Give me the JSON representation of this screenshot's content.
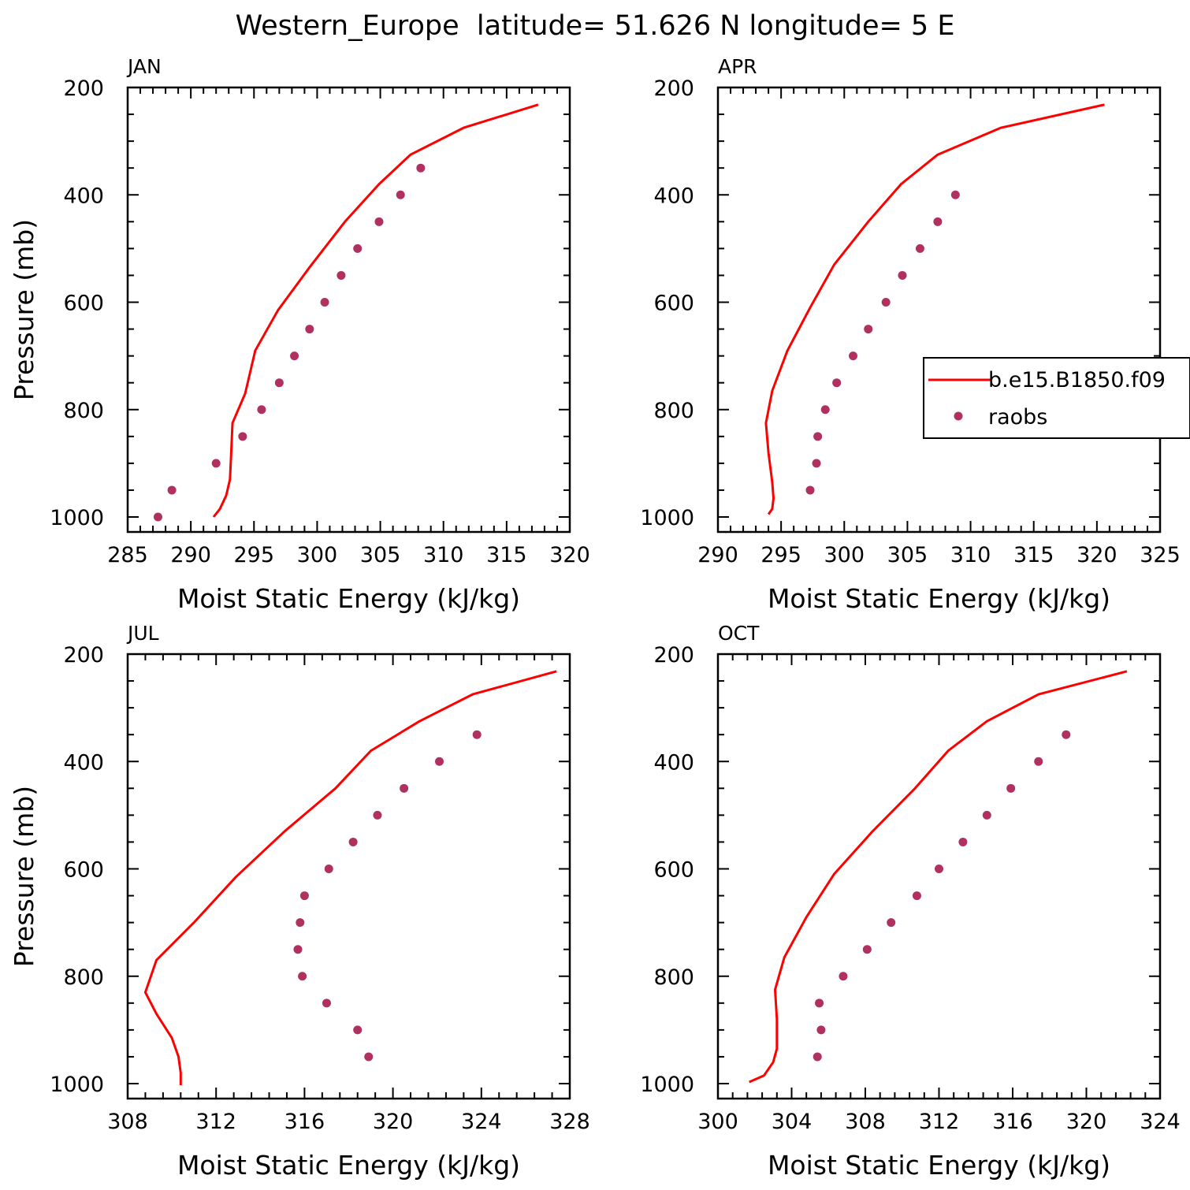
{
  "title": "Western_Europe  latitude= 51.626 N longitude= 5 E",
  "legend": {
    "entries": [
      {
        "label": "b.e15.B1850.f09",
        "type": "line",
        "color": "#ff0000"
      },
      {
        "label": "raobs",
        "type": "marker",
        "color": "#b03060"
      }
    ]
  },
  "chart_data": [
    {
      "type": "line",
      "panel_label": "JAN",
      "xlabel": "Moist Static Energy (kJ/kg)",
      "ylabel": "Pressure (mb)",
      "xlim": [
        285,
        320
      ],
      "ylim": [
        1000,
        200
      ],
      "y_reversed": true,
      "xticks": [
        "285",
        "290",
        "295",
        "300",
        "305",
        "310",
        "315",
        "320"
      ],
      "yticks": [
        "200",
        "400",
        "600",
        "800",
        "1000"
      ],
      "series": [
        {
          "name": "b.e15.B1850.f09",
          "style": "line",
          "color": "#ff0000",
          "points": [
            [
              317.5,
              232
            ],
            [
              311.6,
              275
            ],
            [
              307.4,
              325
            ],
            [
              304.9,
              380
            ],
            [
              302.2,
              450
            ],
            [
              299.4,
              535
            ],
            [
              296.9,
              615
            ],
            [
              295.1,
              690
            ],
            [
              294.3,
              770
            ],
            [
              293.3,
              825
            ],
            [
              293.2,
              880
            ],
            [
              293.1,
              930
            ],
            [
              292.8,
              960
            ],
            [
              292.3,
              985
            ],
            [
              291.8,
              1000
            ]
          ]
        },
        {
          "name": "raobs",
          "style": "scatter",
          "color": "#b03060",
          "points": [
            [
              308.2,
              350
            ],
            [
              306.6,
              400
            ],
            [
              304.9,
              450
            ],
            [
              303.2,
              500
            ],
            [
              301.9,
              550
            ],
            [
              300.6,
              600
            ],
            [
              299.4,
              650
            ],
            [
              298.2,
              700
            ],
            [
              297.0,
              750
            ],
            [
              295.6,
              800
            ],
            [
              294.1,
              850
            ],
            [
              292.0,
              900
            ],
            [
              288.5,
              950
            ],
            [
              287.4,
              1000
            ]
          ]
        }
      ]
    },
    {
      "type": "line",
      "panel_label": "APR",
      "xlabel": "Moist Static Energy (kJ/kg)",
      "ylabel": "",
      "xlim": [
        290,
        325
      ],
      "ylim": [
        1000,
        200
      ],
      "y_reversed": true,
      "xticks": [
        "290",
        "295",
        "300",
        "305",
        "310",
        "315",
        "320",
        "325"
      ],
      "yticks": [
        "200",
        "400",
        "600",
        "800",
        "1000"
      ],
      "series": [
        {
          "name": "b.e15.B1850.f09",
          "style": "line",
          "color": "#ff0000",
          "points": [
            [
              320.6,
              232
            ],
            [
              312.4,
              275
            ],
            [
              307.4,
              325
            ],
            [
              304.5,
              380
            ],
            [
              301.9,
              450
            ],
            [
              299.2,
              530
            ],
            [
              297.3,
              610
            ],
            [
              295.5,
              690
            ],
            [
              294.3,
              765
            ],
            [
              293.8,
              825
            ],
            [
              294.0,
              880
            ],
            [
              294.3,
              935
            ],
            [
              294.4,
              965
            ],
            [
              294.3,
              985
            ],
            [
              294.0,
              995
            ]
          ]
        },
        {
          "name": "raobs",
          "style": "scatter",
          "color": "#b03060",
          "points": [
            [
              308.8,
              400
            ],
            [
              307.4,
              450
            ],
            [
              306.0,
              500
            ],
            [
              304.6,
              550
            ],
            [
              303.3,
              600
            ],
            [
              301.9,
              650
            ],
            [
              300.7,
              700
            ],
            [
              299.4,
              750
            ],
            [
              298.5,
              800
            ],
            [
              297.9,
              850
            ],
            [
              297.8,
              900
            ],
            [
              297.3,
              950
            ]
          ]
        }
      ]
    },
    {
      "type": "line",
      "panel_label": "JUL",
      "xlabel": "Moist Static Energy (kJ/kg)",
      "ylabel": "Pressure (mb)",
      "xlim": [
        308,
        328
      ],
      "ylim": [
        1000,
        200
      ],
      "y_reversed": true,
      "xticks": [
        "308",
        "312",
        "316",
        "320",
        "324",
        "328"
      ],
      "yticks": [
        "200",
        "400",
        "600",
        "800",
        "1000"
      ],
      "series": [
        {
          "name": "b.e15.B1850.f09",
          "style": "line",
          "color": "#ff0000",
          "points": [
            [
              327.4,
              232
            ],
            [
              323.6,
              275
            ],
            [
              321.2,
              325
            ],
            [
              319.0,
              380
            ],
            [
              317.4,
              450
            ],
            [
              315.1,
              530
            ],
            [
              312.9,
              615
            ],
            [
              311.0,
              700
            ],
            [
              309.3,
              770
            ],
            [
              308.8,
              830
            ],
            [
              309.3,
              870
            ],
            [
              310.0,
              915
            ],
            [
              310.3,
              950
            ],
            [
              310.4,
              980
            ],
            [
              310.4,
              1003
            ]
          ]
        },
        {
          "name": "raobs",
          "style": "scatter",
          "color": "#b03060",
          "points": [
            [
              323.8,
              350
            ],
            [
              322.1,
              400
            ],
            [
              320.5,
              450
            ],
            [
              319.3,
              500
            ],
            [
              318.2,
              550
            ],
            [
              317.1,
              600
            ],
            [
              316.0,
              650
            ],
            [
              315.8,
              700
            ],
            [
              315.7,
              750
            ],
            [
              315.9,
              800
            ],
            [
              317.0,
              850
            ],
            [
              318.4,
              900
            ],
            [
              318.9,
              950
            ]
          ]
        }
      ]
    },
    {
      "type": "line",
      "panel_label": "OCT",
      "xlabel": "Moist Static Energy (kJ/kg)",
      "ylabel": "",
      "xlim": [
        300,
        324
      ],
      "ylim": [
        1000,
        200
      ],
      "y_reversed": true,
      "xticks": [
        "300",
        "304",
        "308",
        "312",
        "316",
        "320",
        "324"
      ],
      "yticks": [
        "200",
        "400",
        "600",
        "800",
        "1000"
      ],
      "series": [
        {
          "name": "b.e15.B1850.f09",
          "style": "line",
          "color": "#ff0000",
          "points": [
            [
              322.2,
              232
            ],
            [
              317.4,
              275
            ],
            [
              314.6,
              325
            ],
            [
              312.5,
              380
            ],
            [
              310.7,
              450
            ],
            [
              308.4,
              530
            ],
            [
              306.3,
              610
            ],
            [
              304.8,
              690
            ],
            [
              303.6,
              765
            ],
            [
              303.1,
              825
            ],
            [
              303.2,
              880
            ],
            [
              303.2,
              935
            ],
            [
              303.0,
              960
            ],
            [
              302.5,
              985
            ],
            [
              301.7,
              997
            ]
          ]
        },
        {
          "name": "raobs",
          "style": "scatter",
          "color": "#b03060",
          "points": [
            [
              318.9,
              350
            ],
            [
              317.4,
              400
            ],
            [
              315.9,
              450
            ],
            [
              314.6,
              500
            ],
            [
              313.3,
              550
            ],
            [
              312.0,
              600
            ],
            [
              310.8,
              650
            ],
            [
              309.4,
              700
            ],
            [
              308.1,
              750
            ],
            [
              306.8,
              800
            ],
            [
              305.5,
              850
            ],
            [
              305.6,
              900
            ],
            [
              305.4,
              950
            ]
          ]
        }
      ]
    }
  ]
}
